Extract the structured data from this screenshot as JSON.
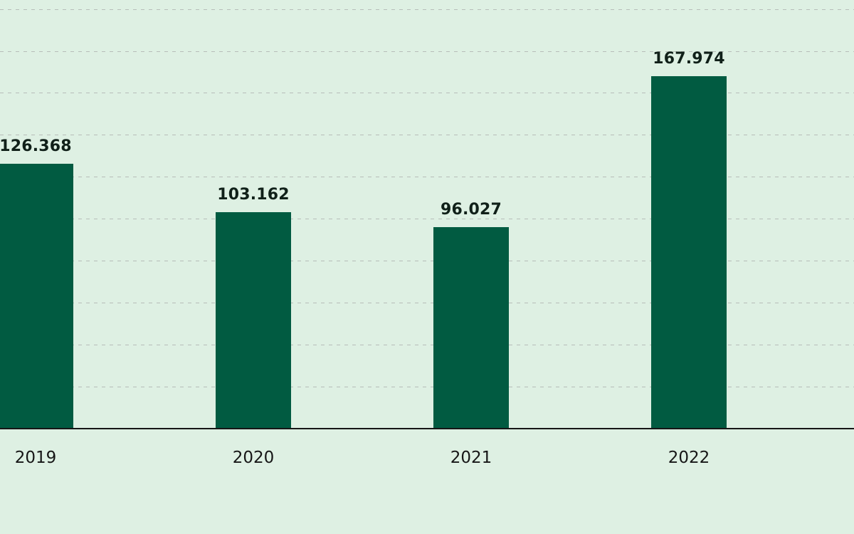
{
  "chart_data": {
    "type": "bar",
    "categories": [
      "2019",
      "2020",
      "2021",
      "2022"
    ],
    "values": [
      126368,
      103162,
      96027,
      167974
    ],
    "value_labels": [
      "126.368",
      "103.162",
      "96.027",
      "167.974"
    ],
    "title": "",
    "xlabel": "",
    "ylabel": "",
    "ylim": [
      0,
      204000
    ],
    "ytick_step": 20000,
    "grid": "dashed-horizontal",
    "legend": "none",
    "colors": {
      "background": "#def0e3",
      "bar": "#015b41",
      "gridline": "#b7bdb9",
      "axis_line": "#161616",
      "value_text": "#102019",
      "tick_text": "#161616"
    }
  }
}
